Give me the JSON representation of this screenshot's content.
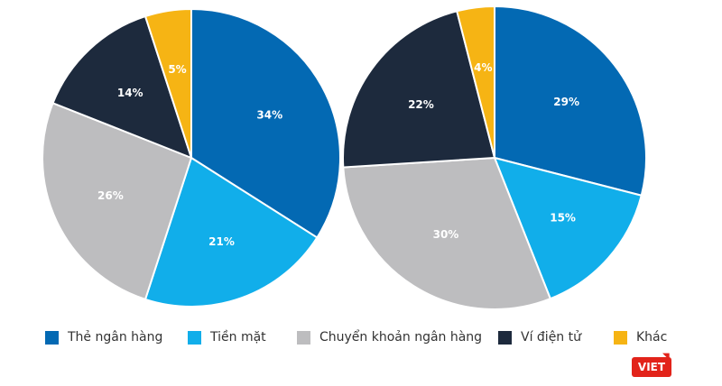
{
  "categories": [
    "Thẻ ngân hàng",
    "Tiền mặt",
    "Chuyển khoản ngân hàng",
    "Ví điện tử",
    "Khác"
  ],
  "colors": {
    "Thẻ ngân hàng": "#0369b3",
    "Tiền mặt": "#11aeea",
    "Chuyển khoản ngân hàng": "#bdbdbf",
    "Ví điện tử": "#1d2a3d",
    "Khác": "#f6b414"
  },
  "chart_data": [
    {
      "type": "pie",
      "slices": [
        {
          "label": "Thẻ ngân hàng",
          "value": 34,
          "text": "34%"
        },
        {
          "label": "Tiền mặt",
          "value": 21,
          "text": "21%"
        },
        {
          "label": "Chuyển khoản ngân hàng",
          "value": 26,
          "text": "26%"
        },
        {
          "label": "Ví điện tử",
          "value": 14,
          "text": "14%"
        },
        {
          "label": "Khác",
          "value": 5,
          "text": "5%"
        }
      ]
    },
    {
      "type": "pie",
      "slices": [
        {
          "label": "Thẻ ngân hàng",
          "value": 29,
          "text": "29%"
        },
        {
          "label": "Tiền mặt",
          "value": 15,
          "text": "15%"
        },
        {
          "label": "Chuyển khoản ngân hàng",
          "value": 30,
          "text": "30%"
        },
        {
          "label": "Ví điện tử",
          "value": 22,
          "text": "22%"
        },
        {
          "label": "Khác",
          "value": 4,
          "text": "4%"
        }
      ]
    }
  ],
  "legend": [
    {
      "label": "Thẻ ngân hàng",
      "color_key": "Thẻ ngân hàng"
    },
    {
      "label": "Tiền mặt",
      "color_key": "Tiền mặt"
    },
    {
      "label": "Chuyển khoản ngân hàng",
      "color_key": "Chuyển khoản ngân hàng"
    },
    {
      "label": "Ví điện tử",
      "color_key": "Ví điện tử"
    },
    {
      "label": "Khác",
      "color_key": "Khác"
    }
  ],
  "logo": {
    "text": "VIET"
  }
}
